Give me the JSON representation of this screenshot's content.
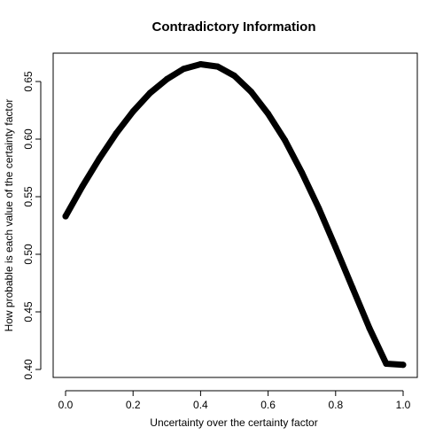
{
  "chart_data": {
    "type": "line",
    "title": "Contradictory Information",
    "xlabel": "Uncertainty over the certainty factor",
    "ylabel": "How probable is each value of the certainty factor",
    "xlim": [
      0,
      1
    ],
    "ylim": [
      0.395,
      0.67
    ],
    "xticks": [
      0.0,
      0.2,
      0.4,
      0.6,
      0.8,
      1.0
    ],
    "xtick_labels": [
      "0.0",
      "0.2",
      "0.4",
      "0.6",
      "0.8",
      "1.0"
    ],
    "yticks": [
      0.4,
      0.45,
      0.5,
      0.55,
      0.6,
      0.65
    ],
    "ytick_labels": [
      "0.40",
      "0.45",
      "0.50",
      "0.55",
      "0.60",
      "0.65"
    ],
    "grid": false,
    "line_color": "#000000",
    "series": [
      {
        "x": [
          0.0,
          0.05,
          0.1,
          0.15,
          0.2,
          0.25,
          0.3,
          0.35,
          0.4,
          0.45,
          0.5,
          0.55,
          0.6,
          0.65,
          0.7,
          0.75,
          0.8,
          0.85,
          0.9,
          0.95,
          1.0
        ],
        "y": [
          0.533,
          0.559,
          0.583,
          0.605,
          0.624,
          0.64,
          0.652,
          0.661,
          0.665,
          0.663,
          0.655,
          0.641,
          0.622,
          0.599,
          0.571,
          0.54,
          0.506,
          0.471,
          0.436,
          0.405,
          0.404
        ]
      }
    ]
  }
}
